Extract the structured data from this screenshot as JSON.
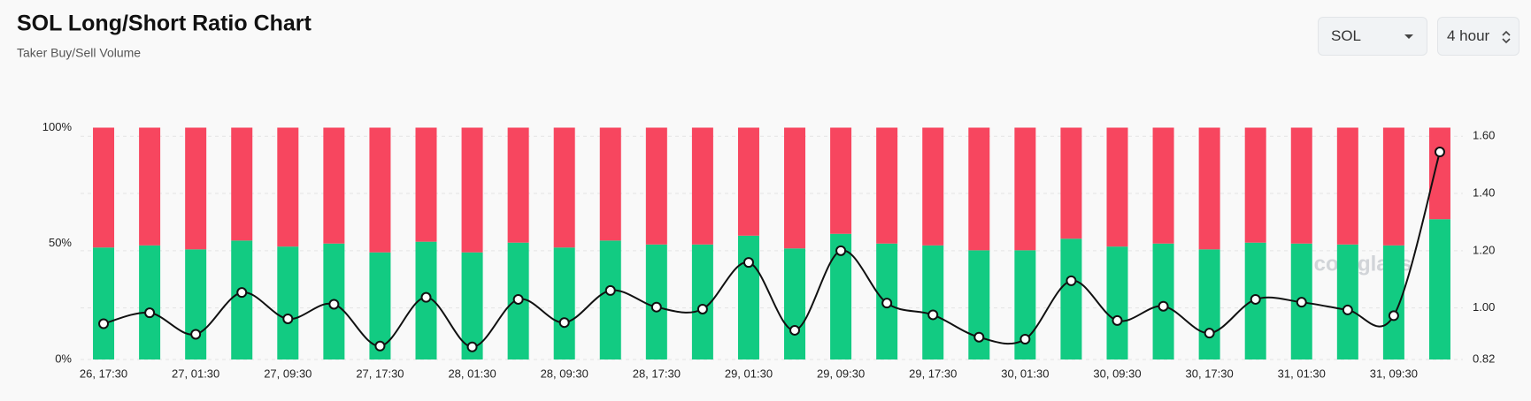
{
  "chart_data": {
    "type": "bar",
    "stacked": true,
    "title": "SOL Long/Short Ratio Chart",
    "subtitle": "Taker Buy/Sell Volume",
    "controls": {
      "symbol": "SOL",
      "interval": "4 hour"
    },
    "watermark": "coinglass",
    "categories": [
      "26, 17:30",
      null,
      "27, 01:30",
      null,
      "27, 09:30",
      null,
      "27, 17:30",
      null,
      "28, 01:30",
      null,
      "28, 09:30",
      null,
      "28, 17:30",
      null,
      "29, 01:30",
      null,
      "29, 09:30",
      null,
      "29, 17:30",
      null,
      "30, 01:30",
      null,
      "30, 09:30",
      null,
      "30, 17:30",
      null,
      "31, 01:30",
      null,
      "31, 09:30",
      null
    ],
    "series": [
      {
        "color": "#12cb82",
        "values": [
          48.3,
          49.2,
          47.5,
          51.3,
          48.7,
          50,
          46.2,
          50.8,
          46.2,
          50.4,
          48.3,
          51.3,
          49.6,
          49.6,
          53.4,
          47.9,
          54.2,
          50,
          49.2,
          47.1,
          47.1,
          52.1,
          48.7,
          50,
          47.5,
          50.4,
          50,
          49.6,
          49.2,
          60.5
        ]
      },
      {
        "color": "#f7465f",
        "values": [
          51.7,
          50.8,
          52.5,
          48.7,
          51.3,
          50,
          53.8,
          49.2,
          53.8,
          49.6,
          51.7,
          48.7,
          50.4,
          50.4,
          46.6,
          52.1,
          45.8,
          50,
          50.8,
          52.9,
          52.9,
          47.9,
          51.3,
          50,
          52.5,
          49.6,
          50,
          50.4,
          50.8,
          39.5
        ]
      },
      {
        "type": "line",
        "axis": "y2",
        "color": "#111111",
        "values": [
          0.945,
          0.983,
          0.908,
          1.054,
          0.962,
          1.013,
          0.867,
          1.037,
          0.864,
          1.03,
          0.949,
          1.061,
          1.003,
          0.996,
          1.159,
          0.922,
          1.2,
          1.017,
          0.976,
          0.898,
          0.891,
          1.095,
          0.956,
          1.006,
          0.912,
          1.03,
          1.02,
          0.993,
          0.973,
          1.545
        ]
      }
    ],
    "ylim": [
      0,
      100
    ],
    "yticks": [
      {
        "value": 0,
        "label": "0%"
      },
      {
        "value": 50,
        "label": "50%"
      },
      {
        "value": 100,
        "label": "100%"
      }
    ],
    "y2lim": [
      0.82,
      1.63
    ],
    "y2ticks": [
      0.82,
      {
        "value": 1,
        "label": "1.00"
      },
      {
        "value": 1.2,
        "label": "1.20"
      },
      {
        "value": 1.4,
        "label": "1.40"
      },
      {
        "value": 1.6,
        "label": "1.60"
      }
    ],
    "grid": true
  }
}
